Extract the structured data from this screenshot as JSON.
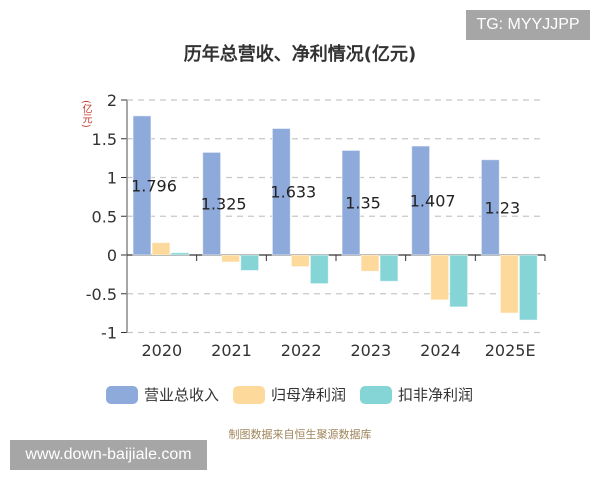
{
  "watermark_top": "TG: MYYJJPP",
  "watermark_bottom": "www.down-baijiale.com",
  "source_note": "制图数据来自恒生聚源数据库",
  "chart_data": {
    "type": "bar",
    "title": "历年总营收、净利情况(亿元)",
    "ylabel": "(亿元)",
    "xlabel": "",
    "ylim": [
      -1,
      2
    ],
    "yticks": [
      2,
      1.5,
      1,
      0.5,
      0,
      -0.5,
      -1
    ],
    "ytick_labels": [
      "2",
      "1.5",
      "1",
      "0.5",
      "0",
      "-0.5",
      "-1"
    ],
    "grid": true,
    "legend_position": "bottom",
    "categories": [
      "2020",
      "2021",
      "2022",
      "2023",
      "2024",
      "2025E"
    ],
    "series": [
      {
        "name": "营业总收入",
        "color": "#8eaadb",
        "values": [
          1.796,
          1.325,
          1.633,
          1.35,
          1.407,
          1.23
        ],
        "labels": [
          "1.796",
          "1.325",
          "1.633",
          "1.35",
          "1.407",
          "1.23"
        ]
      },
      {
        "name": "归母净利润",
        "color": "#fdd99b",
        "values": [
          0.16,
          -0.09,
          -0.15,
          -0.21,
          -0.58,
          -0.75
        ]
      },
      {
        "name": "扣非净利润",
        "color": "#85d5d6",
        "values": [
          0.03,
          -0.2,
          -0.37,
          -0.34,
          -0.67,
          -0.84
        ]
      }
    ]
  }
}
